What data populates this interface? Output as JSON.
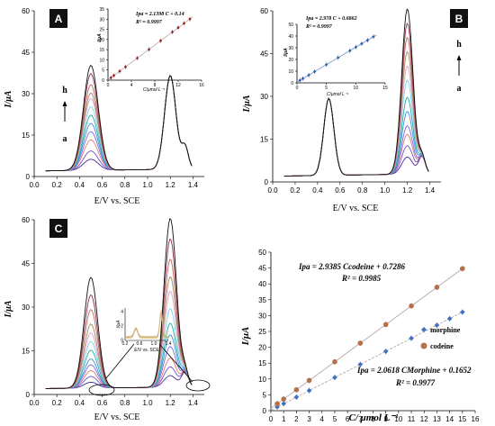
{
  "panels": {
    "A": {
      "label": "A",
      "ylabel": "I/μA",
      "xlabel": "E/V vs. SCE",
      "marker_top": "h",
      "marker_bottom": "a",
      "inset": {
        "ylabel": "I/μA",
        "xlabel": "C/μmol L⁻¹",
        "eq": "Ipa = 2.1398 C + 0.14",
        "r2": "R² = 0.9997"
      }
    },
    "B": {
      "label": "B",
      "ylabel": "I/μA",
      "xlabel": "E/V vs. SCE",
      "marker_top": "h",
      "marker_bottom": "a",
      "inset": {
        "ylabel": "I/μA",
        "xlabel": "C/μmol L⁻¹",
        "eq": "Ipa = 2.978 C + 0.6862",
        "r2": "R² = 0.9997"
      }
    },
    "C": {
      "label": "C",
      "ylabel": "I/μA",
      "xlabel": "E/V vs. SCE",
      "inset": {
        "ylabel": "I/μA",
        "xlabel": "E/V vs. SCE"
      }
    },
    "D": {
      "ylabel": "I/μA",
      "xlabel": "C/ μmol L⁻¹",
      "eq_codeine": "Ipa = 2.9385 Ccodeine + 0.7286",
      "r2_codeine": "R² = 0.9985",
      "eq_morphine": "Ipa = 2.0618 CMorphine + 0.1652",
      "r2_morphine": "R² = 0.9977",
      "legend": [
        "morphine",
        "codeine"
      ]
    }
  },
  "colors": {
    "label_bg": "#111111",
    "morphine": "#3f6fc2",
    "codeine": "#b5714b",
    "fit_line": "#b8a6a8",
    "curves": [
      "#4a2a9a",
      "#6f4ed0",
      "#e07a70",
      "#7a68e0",
      "#3a8fe0",
      "#1fae9e",
      "#7fd0e8",
      "#d8a0c8",
      "#9a8d60",
      "#c06858",
      "#8a3050",
      "#101010"
    ]
  },
  "chart_data": [
    {
      "panel": "A",
      "type": "line",
      "xlabel": "E/V vs. SCE",
      "ylabel": "I/μA",
      "xlim": [
        0.0,
        1.5
      ],
      "ylim": [
        0,
        60
      ],
      "xticks": [
        0.0,
        0.2,
        0.4,
        0.6,
        0.8,
        1.0,
        1.2,
        1.4
      ],
      "yticks": [
        0,
        15,
        30,
        45,
        60
      ],
      "peak_potentials": [
        0.5,
        1.2
      ],
      "peak1_currents": [
        4,
        7,
        11,
        14,
        17,
        20,
        23,
        26,
        28,
        31,
        35,
        38
      ],
      "peak2_current": 34
    },
    {
      "panel": "A-inset",
      "type": "scatter",
      "xlabel": "C/μmol L⁻¹",
      "ylabel": "I/μA",
      "xlim": [
        0,
        16
      ],
      "ylim": [
        0,
        35
      ],
      "xticks": [
        0,
        4,
        8,
        12,
        16
      ],
      "yticks": [
        0,
        5,
        10,
        15,
        20,
        25,
        30,
        35
      ],
      "x": [
        0.5,
        1,
        2,
        3,
        5,
        7,
        9,
        11,
        12,
        13,
        14
      ],
      "slope": 2.1398,
      "intercept": 0.14
    },
    {
      "panel": "B",
      "type": "line",
      "xlabel": "E/V vs. SCE",
      "ylabel": "I/μA",
      "xlim": [
        0.0,
        1.5
      ],
      "ylim": [
        0,
        60
      ],
      "xticks": [
        0.0,
        0.2,
        0.4,
        0.6,
        0.8,
        1.0,
        1.2,
        1.4
      ],
      "yticks": [
        0,
        15,
        30,
        45,
        60
      ],
      "peak_potentials": [
        0.5,
        1.2
      ],
      "peak1_current": 27,
      "peak2_currents": [
        6,
        10,
        14,
        17,
        22,
        27,
        33,
        38,
        43,
        48,
        53,
        58
      ]
    },
    {
      "panel": "B-inset",
      "type": "scatter",
      "xlabel": "C/μmol L⁻¹",
      "ylabel": "I/μA",
      "xlim": [
        0,
        15
      ],
      "ylim": [
        0,
        50
      ],
      "xticks": [
        0,
        5,
        10,
        15
      ],
      "yticks": [
        0,
        10,
        20,
        30,
        40,
        50
      ],
      "x": [
        0.5,
        1,
        2,
        3,
        5,
        7,
        9,
        10,
        11,
        12,
        13
      ],
      "slope": 2.978,
      "intercept": 0.6862
    },
    {
      "panel": "C",
      "type": "line",
      "xlabel": "E/V vs. SCE",
      "ylabel": "I/μA",
      "xlim": [
        0.0,
        1.5
      ],
      "ylim": [
        0,
        60
      ],
      "xticks": [
        0.0,
        0.2,
        0.4,
        0.6,
        0.8,
        1.0,
        1.2,
        1.4
      ],
      "yticks": [
        0,
        15,
        30,
        45,
        60
      ],
      "peak_potentials": [
        0.5,
        1.2
      ],
      "peak1_currents": [
        2,
        4,
        6,
        8,
        10,
        13,
        16,
        19,
        22,
        27,
        32,
        38
      ],
      "peak2_currents": [
        4,
        7,
        10,
        14,
        18,
        22,
        27,
        33,
        38,
        44,
        51,
        58
      ]
    },
    {
      "panel": "C-inset",
      "type": "line",
      "xlabel": "E/V vs. SCE",
      "ylabel": "I/μA",
      "xlim": [
        0.2,
        1.4
      ],
      "xticks": [
        0.2,
        0.6,
        1.0,
        1.4
      ],
      "yticks": [
        0,
        2,
        4
      ],
      "peak_potentials": [
        0.5,
        1.2
      ],
      "peak1_current": 1.2,
      "peak2_current": 3.6
    },
    {
      "panel": "D",
      "type": "scatter",
      "xlabel": "C/ μmol L⁻¹",
      "ylabel": "I/μA",
      "xlim": [
        0,
        16
      ],
      "ylim": [
        0,
        50
      ],
      "xticks": [
        0,
        1,
        2,
        3,
        4,
        5,
        6,
        7,
        8,
        9,
        10,
        11,
        12,
        13,
        14,
        15,
        16
      ],
      "yticks": [
        0,
        5,
        10,
        15,
        20,
        25,
        30,
        35,
        40,
        45,
        50
      ],
      "series": [
        {
          "name": "morphine",
          "x": [
            0.5,
            1,
            2,
            3,
            5,
            7,
            9,
            11,
            13,
            14,
            15
          ],
          "slope": 2.0618,
          "intercept": 0.1652
        },
        {
          "name": "codeine",
          "x": [
            0.5,
            1,
            2,
            3,
            5,
            7,
            9,
            11,
            13,
            15
          ],
          "slope": 2.9385,
          "intercept": 0.7286
        }
      ]
    }
  ]
}
